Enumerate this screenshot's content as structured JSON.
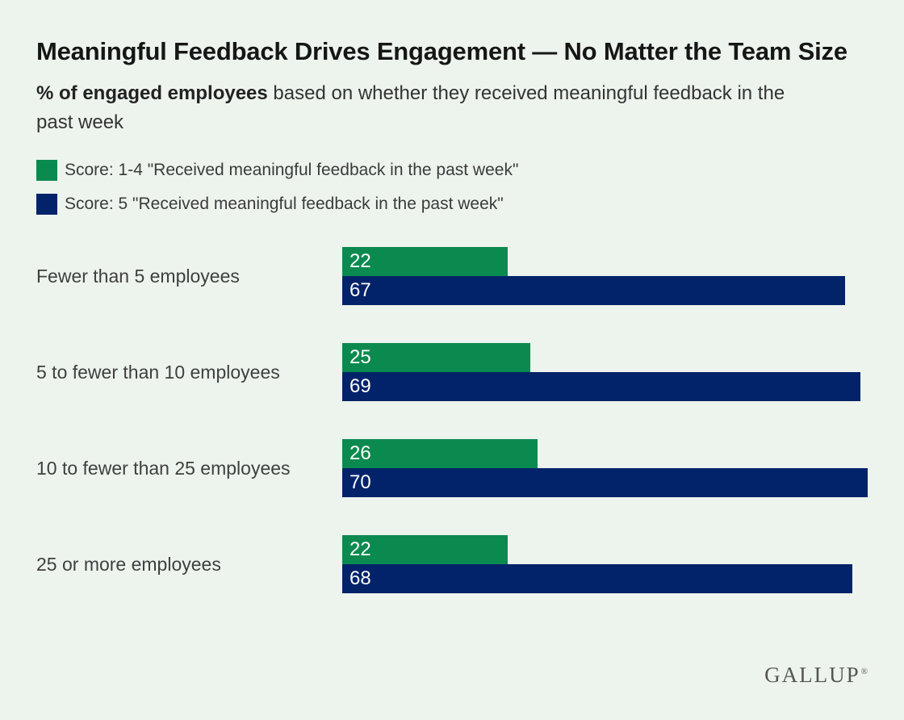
{
  "header": {
    "title": "Meaningful Feedback Drives Engagement — No Matter the Team Size",
    "subtitle_bold": "% of engaged employees",
    "subtitle_rest": " based on whether they received meaningful feedback in the past week"
  },
  "legend": {
    "items": [
      {
        "label": "Score: 1-4 \"Received meaningful feedback in the past week\"",
        "color": "#0b8a4f",
        "icon": "legend-swatch-green"
      },
      {
        "label": "Score: 5 \"Received meaningful feedback in the past week\"",
        "color": "#02236a",
        "icon": "legend-swatch-navy"
      }
    ]
  },
  "chart_data": {
    "type": "bar",
    "orientation": "horizontal",
    "title": "Meaningful Feedback Drives Engagement — No Matter the Team Size",
    "subtitle": "% of engaged employees based on whether they received meaningful feedback in the past week",
    "categories": [
      "Fewer than 5 employees",
      "5 to fewer than 10 employees",
      "10 to fewer than 25 employees",
      "25 or more employees"
    ],
    "series": [
      {
        "name": "Score: 1-4 \"Received meaningful feedback in the past week\"",
        "color": "#0b8a4f",
        "values": [
          22,
          25,
          26,
          22
        ]
      },
      {
        "name": "Score: 5 \"Received meaningful feedback in the past week\"",
        "color": "#02236a",
        "values": [
          67,
          69,
          70,
          68
        ]
      }
    ],
    "xlim": [
      0,
      70
    ],
    "value_labels": "inside-start",
    "grid": false,
    "legend_position": "top-left"
  },
  "footer": {
    "brand": "GALLUP",
    "brand_reg": "®"
  },
  "colors": {
    "background": "#edf4ed",
    "title_text": "#161616",
    "body_text": "#3b3b3b",
    "bar_value_text": "#ffffff",
    "green": "#0b8a4f",
    "navy": "#02236a",
    "brand_text": "#55564f"
  }
}
